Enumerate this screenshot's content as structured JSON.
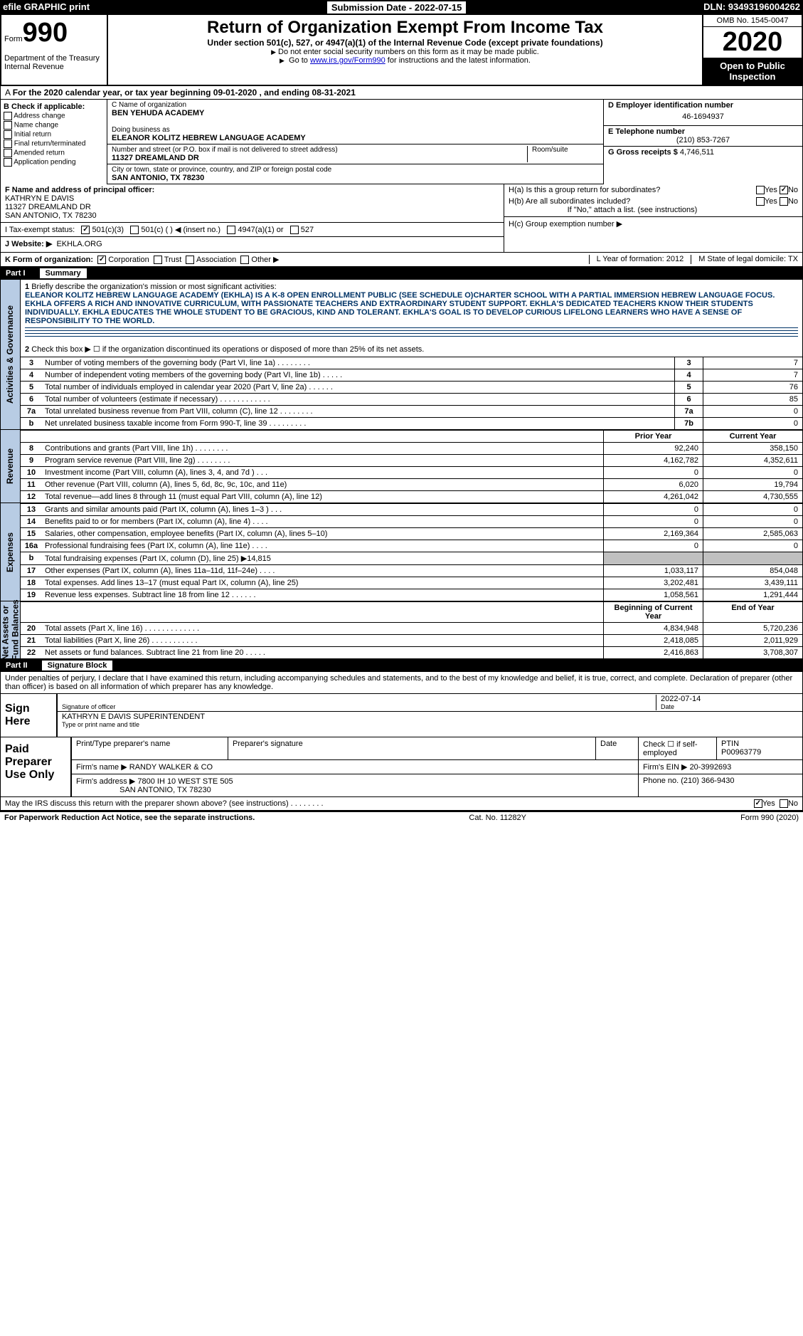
{
  "topbar": {
    "efile": "efile GRAPHIC print",
    "submission": "Submission Date - 2022-07-15",
    "dln": "DLN: 93493196004262"
  },
  "header": {
    "form_label": "Form",
    "form_no": "990",
    "dept": "Department of the Treasury\nInternal Revenue",
    "title": "Return of Organization Exempt From Income Tax",
    "sub": "Under section 501(c), 527, or 4947(a)(1) of the Internal Revenue Code (except private foundations)",
    "note1": "Do not enter social security numbers on this form as it may be made public.",
    "note2_a": "Go to ",
    "note2_link": "www.irs.gov/Form990",
    "note2_b": " for instructions and the latest information.",
    "omb": "OMB No. 1545-0047",
    "year": "2020",
    "open": "Open to Public Inspection"
  },
  "period": "For the 2020 calendar year, or tax year beginning 09-01-2020   , and ending 08-31-2021",
  "boxB": {
    "hdr": "B Check if applicable:",
    "opts": [
      "Address change",
      "Name change",
      "Initial return",
      "Final return/terminated",
      "Amended return",
      "Application pending"
    ]
  },
  "boxC": {
    "name_lbl": "C Name of organization",
    "name": "BEN YEHUDA ACADEMY",
    "dba_lbl": "Doing business as",
    "dba": "ELEANOR KOLITZ HEBREW LANGUAGE ACADEMY",
    "street_lbl": "Number and street (or P.O. box if mail is not delivered to street address)",
    "room_lbl": "Room/suite",
    "street": "11327 DREAMLAND DR",
    "city_lbl": "City or town, state or province, country, and ZIP or foreign postal code",
    "city": "SAN ANTONIO, TX  78230"
  },
  "boxD": {
    "lbl": "D Employer identification number",
    "val": "46-1694937"
  },
  "boxE": {
    "lbl": "E Telephone number",
    "val": "(210) 853-7267"
  },
  "boxG": {
    "lbl": "G Gross receipts $",
    "val": "4,746,511"
  },
  "boxF": {
    "lbl": "F  Name and address of principal officer:",
    "name": "KATHRYN E DAVIS",
    "addr1": "11327 DREAMLAND DR",
    "addr2": "SAN ANTONIO, TX  78230"
  },
  "boxH": {
    "ha": "H(a)  Is this a group return for subordinates?",
    "ha_yes": "Yes",
    "ha_no": "No",
    "hb": "H(b)  Are all subordinates included?",
    "hb_yes": "Yes",
    "hb_no": "No",
    "hb_note": "If \"No,\" attach a list. (see instructions)",
    "hc": "H(c)  Group exemption number ▶"
  },
  "rowI": {
    "lbl": "I  Tax-exempt status:",
    "o1": "501(c)(3)",
    "o2": "501(c) (   ) ◀ (insert no.)",
    "o3": "4947(a)(1) or",
    "o4": "527"
  },
  "rowJ": {
    "lbl": "J  Website: ▶",
    "val": "EKHLA.ORG"
  },
  "rowK": {
    "lbl": "K Form of organization:",
    "opts": [
      "Corporation",
      "Trust",
      "Association",
      "Other ▶"
    ],
    "L": "L Year of formation: 2012",
    "M": "M State of legal domicile: TX"
  },
  "part1": {
    "no": "Part I",
    "title": "Summary"
  },
  "mission": {
    "num": "1",
    "lbl": "Briefly describe the organization's mission or most significant activities:",
    "txt": "ELEANOR KOLITZ HEBREW LANGUAGE ACADEMY (EKHLA) IS A K-8 OPEN ENROLLMENT PUBLIC (SEE SCHEDULE O)CHARTER SCHOOL WITH A PARTIAL IMMERSION HEBREW LANGUAGE FOCUS. EKHLA OFFERS A RICH AND INNOVATIVE CURRICULUM, WITH PASSIONATE TEACHERS AND EXTRAORDINARY STUDENT SUPPORT. EKHLA'S DEDICATED TEACHERS KNOW THEIR STUDENTS INDIVIDUALLY. EKHLA EDUCATES THE WHOLE STUDENT TO BE GRACIOUS, KIND AND TOLERANT. EKHLA'S GOAL IS TO DEVELOP CURIOUS LIFELONG LEARNERS WHO HAVE A SENSE OF RESPONSIBILITY TO THE WORLD."
  },
  "line2": {
    "num": "2",
    "txt": "Check this box ▶ ☐  if the organization discontinued its operations or disposed of more than 25% of its net assets."
  },
  "gov_rows": [
    {
      "n": "3",
      "d": "Number of voting members of the governing body (Part VI, line 1a)   .    .    .    .    .    .    .    .",
      "b": "3",
      "v": "7"
    },
    {
      "n": "4",
      "d": "Number of independent voting members of the governing body (Part VI, line 1b)    .    .    .    .    .",
      "b": "4",
      "v": "7"
    },
    {
      "n": "5",
      "d": "Total number of individuals employed in calendar year 2020 (Part V, line 2a)   .    .    .    .    .    .",
      "b": "5",
      "v": "76"
    },
    {
      "n": "6",
      "d": "Total number of volunteers (estimate if necessary)   .    .    .    .    .    .    .    .    .    .    .    .",
      "b": "6",
      "v": "85"
    },
    {
      "n": "7a",
      "d": "Total unrelated business revenue from Part VIII, column (C), line 12   .    .    .    .    .    .    .    .",
      "b": "7a",
      "v": "0"
    },
    {
      "n": "b",
      "d": "Net unrelated business taxable income from Form 990-T, line 39   .    .    .    .    .    .    .    .    .",
      "b": "7b",
      "v": "0"
    }
  ],
  "rev_hdr": {
    "prior": "Prior Year",
    "curr": "Current Year"
  },
  "rev_rows": [
    {
      "n": "8",
      "d": "Contributions and grants (Part VIII, line 1h)   .    .    .    .    .    .    .    .",
      "p": "92,240",
      "c": "358,150"
    },
    {
      "n": "9",
      "d": "Program service revenue (Part VIII, line 2g)   .    .    .    .    .    .    .    .",
      "p": "4,162,782",
      "c": "4,352,611"
    },
    {
      "n": "10",
      "d": "Investment income (Part VIII, column (A), lines 3, 4, and 7d )   .    .    .",
      "p": "0",
      "c": "0"
    },
    {
      "n": "11",
      "d": "Other revenue (Part VIII, column (A), lines 5, 6d, 8c, 9c, 10c, and 11e)",
      "p": "6,020",
      "c": "19,794"
    },
    {
      "n": "12",
      "d": "Total revenue—add lines 8 through 11 (must equal Part VIII, column (A), line 12)",
      "p": "4,261,042",
      "c": "4,730,555"
    }
  ],
  "exp_rows": [
    {
      "n": "13",
      "d": "Grants and similar amounts paid (Part IX, column (A), lines 1–3 )   .    .    .",
      "p": "0",
      "c": "0"
    },
    {
      "n": "14",
      "d": "Benefits paid to or for members (Part IX, column (A), line 4)   .    .    .    .",
      "p": "0",
      "c": "0"
    },
    {
      "n": "15",
      "d": "Salaries, other compensation, employee benefits (Part IX, column (A), lines 5–10)",
      "p": "2,169,364",
      "c": "2,585,063"
    },
    {
      "n": "16a",
      "d": "Professional fundraising fees (Part IX, column (A), line 11e)   .    .    .    .",
      "p": "0",
      "c": "0"
    },
    {
      "n": "b",
      "d": "Total fundraising expenses (Part IX, column (D), line 25) ▶14,815",
      "p": "",
      "c": "",
      "grey": true
    },
    {
      "n": "17",
      "d": "Other expenses (Part IX, column (A), lines 11a–11d, 11f–24e)   .    .    .    .",
      "p": "1,033,117",
      "c": "854,048"
    },
    {
      "n": "18",
      "d": "Total expenses. Add lines 13–17 (must equal Part IX, column (A), line 25)",
      "p": "3,202,481",
      "c": "3,439,111"
    },
    {
      "n": "19",
      "d": "Revenue less expenses. Subtract line 18 from line 12   .    .    .    .    .    .",
      "p": "1,058,561",
      "c": "1,291,444"
    }
  ],
  "net_hdr": {
    "beg": "Beginning of Current Year",
    "end": "End of Year"
  },
  "net_rows": [
    {
      "n": "20",
      "d": "Total assets (Part X, line 16)   .    .    .    .    .    .    .    .    .    .    .    .    .",
      "p": "4,834,948",
      "c": "5,720,236"
    },
    {
      "n": "21",
      "d": "Total liabilities (Part X, line 26)   .    .    .    .    .    .    .    .    .    .    .",
      "p": "2,418,085",
      "c": "2,011,929"
    },
    {
      "n": "22",
      "d": "Net assets or fund balances. Subtract line 21 from line 20   .    .    .    .    .",
      "p": "2,416,863",
      "c": "3,708,307"
    }
  ],
  "part2": {
    "no": "Part II",
    "title": "Signature Block"
  },
  "sig_intro": "Under penalties of perjury, I declare that I have examined this return, including accompanying schedules and statements, and to the best of my knowledge and belief, it is true, correct, and complete. Declaration of preparer (other than officer) is based on all information of which preparer has any knowledge.",
  "sign": {
    "label": "Sign Here",
    "sig_lbl": "Signature of officer",
    "date_lbl": "Date",
    "date": "2022-07-14",
    "name": "KATHRYN E DAVIS  SUPERINTENDENT",
    "name_lbl": "Type or print name and title"
  },
  "prep": {
    "label": "Paid Preparer Use Only",
    "r1": {
      "c1": "Print/Type preparer's name",
      "c2": "Preparer's signature",
      "c3": "Date",
      "c4": "Check ☐ if self-employed",
      "c5_lbl": "PTIN",
      "c5": "P00963779"
    },
    "r2": {
      "lbl": "Firm's name    ▶",
      "val": "RANDY WALKER & CO",
      "ein_lbl": "Firm's EIN ▶",
      "ein": "20-3992693"
    },
    "r3": {
      "lbl": "Firm's address ▶",
      "val": "7800 IH 10 WEST STE 505",
      "ph_lbl": "Phone no.",
      "ph": "(210) 366-9430"
    },
    "r4": {
      "city": "SAN ANTONIO, TX  78230"
    }
  },
  "discuss": {
    "txt": "May the IRS discuss this return with the preparer shown above? (see instructions)   .    .    .    .    .    .    .    .",
    "yes": "Yes",
    "no": "No"
  },
  "footer": {
    "left": "For Paperwork Reduction Act Notice, see the separate instructions.",
    "mid": "Cat. No. 11282Y",
    "right": "Form 990 (2020)"
  },
  "vert": {
    "gov": "Activities & Governance",
    "rev": "Revenue",
    "exp": "Expenses",
    "net": "Net Assets or\nFund Balances"
  }
}
